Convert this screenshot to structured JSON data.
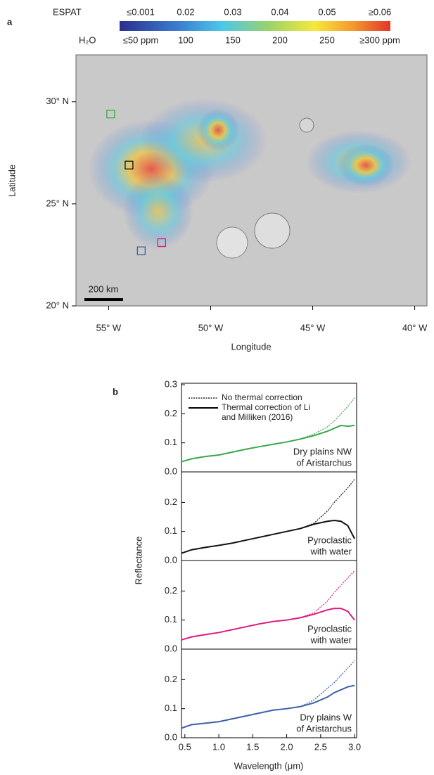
{
  "panel_labels": [
    "a",
    "b"
  ],
  "chart_data": [
    {
      "type": "map",
      "xlabel": "Longitude",
      "ylabel": "Latitude",
      "xlim": [
        -56.6,
        -39.4
      ],
      "ylim": [
        20,
        32.3
      ],
      "xticks": [
        {
          "value": -55,
          "label": "55° W"
        },
        {
          "value": -50,
          "label": "50° W"
        },
        {
          "value": -45,
          "label": "45° W"
        },
        {
          "value": -40,
          "label": "40° W"
        }
      ],
      "yticks": [
        {
          "value": 20,
          "label": "20° N"
        },
        {
          "value": 25,
          "label": "25° N"
        },
        {
          "value": 30,
          "label": "30° N"
        }
      ],
      "colorbar": {
        "espat_title": "ESPAT",
        "espat_labels": [
          "≤0.001",
          "0.02",
          "0.03",
          "0.04",
          "0.05",
          "≥0.06"
        ],
        "h2o_title": "H₂O",
        "h2o_labels": [
          "≤50 ppm",
          "100",
          "150",
          "200",
          "250",
          "≥300 ppm"
        ]
      },
      "scale_bar": "200 km",
      "markers": [
        {
          "x": -54.9,
          "y": 29.4,
          "color": "#3aa84a"
        },
        {
          "x": -54.0,
          "y": 26.9,
          "color": "#111111"
        },
        {
          "x": -53.4,
          "y": 22.7,
          "color": "#3d5fa8"
        },
        {
          "x": -52.4,
          "y": 23.1,
          "color": "#e0197f"
        }
      ]
    },
    {
      "type": "line",
      "ylabel": "Reflectance",
      "xlim": [
        0.45,
        3.03
      ],
      "ylim": [
        0,
        0.305
      ],
      "yticks": [
        {
          "value": 0,
          "label": "0.0"
        },
        0.1,
        0.2,
        0.3
      ],
      "x": [
        0.45,
        0.6,
        0.8,
        1.0,
        1.2,
        1.4,
        1.6,
        1.8,
        2.0,
        2.2,
        2.4,
        2.6,
        2.7,
        2.8,
        2.9,
        3.0
      ],
      "annotation": [
        "Dry plains NW",
        "of Aristarchus"
      ],
      "series": [
        {
          "name": "No thermal correction",
          "style": "dotted",
          "color": "#3aa84a",
          "values": [
            0.035,
            0.045,
            0.053,
            0.058,
            0.068,
            0.078,
            0.087,
            0.095,
            0.103,
            0.113,
            0.13,
            0.155,
            0.175,
            0.2,
            0.225,
            0.255
          ]
        },
        {
          "name": "Thermal correction of Li and Milliken (2016)",
          "style": "solid",
          "color": "#3aa84a",
          "values": [
            0.035,
            0.045,
            0.053,
            0.058,
            0.068,
            0.078,
            0.087,
            0.095,
            0.103,
            0.113,
            0.125,
            0.14,
            0.15,
            0.16,
            0.157,
            0.16
          ]
        }
      ]
    },
    {
      "type": "line",
      "xlim": [
        0.45,
        3.03
      ],
      "ylim": [
        0,
        0.305
      ],
      "yticks": [
        {
          "value": 0,
          "label": "0.0"
        },
        0.1,
        0.2
      ],
      "x": [
        0.45,
        0.6,
        0.8,
        1.0,
        1.2,
        1.4,
        1.6,
        1.8,
        2.0,
        2.2,
        2.4,
        2.6,
        2.7,
        2.8,
        2.9,
        3.0
      ],
      "annotation": [
        "Pyroclastic",
        "with water"
      ],
      "series": [
        {
          "style": "dotted",
          "color": "#111111",
          "values": [
            0.025,
            0.037,
            0.045,
            0.052,
            0.06,
            0.07,
            0.08,
            0.09,
            0.1,
            0.11,
            0.128,
            0.17,
            0.2,
            0.225,
            0.25,
            0.28
          ]
        },
        {
          "style": "solid",
          "color": "#111111",
          "values": [
            0.025,
            0.037,
            0.045,
            0.052,
            0.06,
            0.07,
            0.08,
            0.09,
            0.1,
            0.11,
            0.125,
            0.135,
            0.138,
            0.135,
            0.12,
            0.075
          ]
        }
      ]
    },
    {
      "type": "line",
      "xlim": [
        0.45,
        3.03
      ],
      "ylim": [
        0,
        0.305
      ],
      "yticks": [
        {
          "value": 0,
          "label": "0.0"
        },
        0.1,
        0.2
      ],
      "x": [
        0.45,
        0.6,
        0.8,
        1.0,
        1.2,
        1.4,
        1.6,
        1.8,
        2.0,
        2.2,
        2.4,
        2.6,
        2.7,
        2.8,
        2.9,
        3.0
      ],
      "annotation": [
        "Pyroclastic",
        "with water"
      ],
      "series": [
        {
          "style": "dotted",
          "color": "#e0197f",
          "values": [
            0.032,
            0.042,
            0.05,
            0.057,
            0.067,
            0.077,
            0.087,
            0.095,
            0.1,
            0.108,
            0.125,
            0.165,
            0.195,
            0.22,
            0.245,
            0.27
          ]
        },
        {
          "style": "solid",
          "color": "#e0197f",
          "values": [
            0.032,
            0.042,
            0.05,
            0.057,
            0.067,
            0.077,
            0.087,
            0.095,
            0.1,
            0.108,
            0.12,
            0.135,
            0.14,
            0.14,
            0.13,
            0.1
          ]
        }
      ]
    },
    {
      "type": "line",
      "xlabel": "Wavelength (μm)",
      "xlim": [
        0.45,
        3.03
      ],
      "ylim": [
        0,
        0.305
      ],
      "yticks": [
        {
          "value": 0,
          "label": "0.0"
        },
        0.1,
        0.2
      ],
      "xticks": [
        0.5,
        {
          "value": 1,
          "label": "1.0"
        },
        1.5,
        {
          "value": 2,
          "label": "2.0"
        },
        2.5,
        {
          "value": 3,
          "label": "3.0"
        }
      ],
      "x": [
        0.45,
        0.6,
        0.8,
        1.0,
        1.2,
        1.4,
        1.6,
        1.8,
        2.0,
        2.2,
        2.4,
        2.6,
        2.7,
        2.8,
        2.9,
        3.0
      ],
      "annotation": [
        "Dry plains W",
        "of Aristarchus"
      ],
      "series": [
        {
          "style": "dotted",
          "color": "#3d5fa8",
          "values": [
            0.033,
            0.045,
            0.05,
            0.055,
            0.065,
            0.075,
            0.085,
            0.095,
            0.1,
            0.107,
            0.13,
            0.17,
            0.19,
            0.215,
            0.24,
            0.265
          ]
        },
        {
          "style": "solid",
          "color": "#3d5fa8",
          "values": [
            0.033,
            0.045,
            0.05,
            0.055,
            0.065,
            0.075,
            0.085,
            0.095,
            0.1,
            0.107,
            0.12,
            0.14,
            0.155,
            0.165,
            0.175,
            0.18
          ]
        }
      ]
    }
  ]
}
